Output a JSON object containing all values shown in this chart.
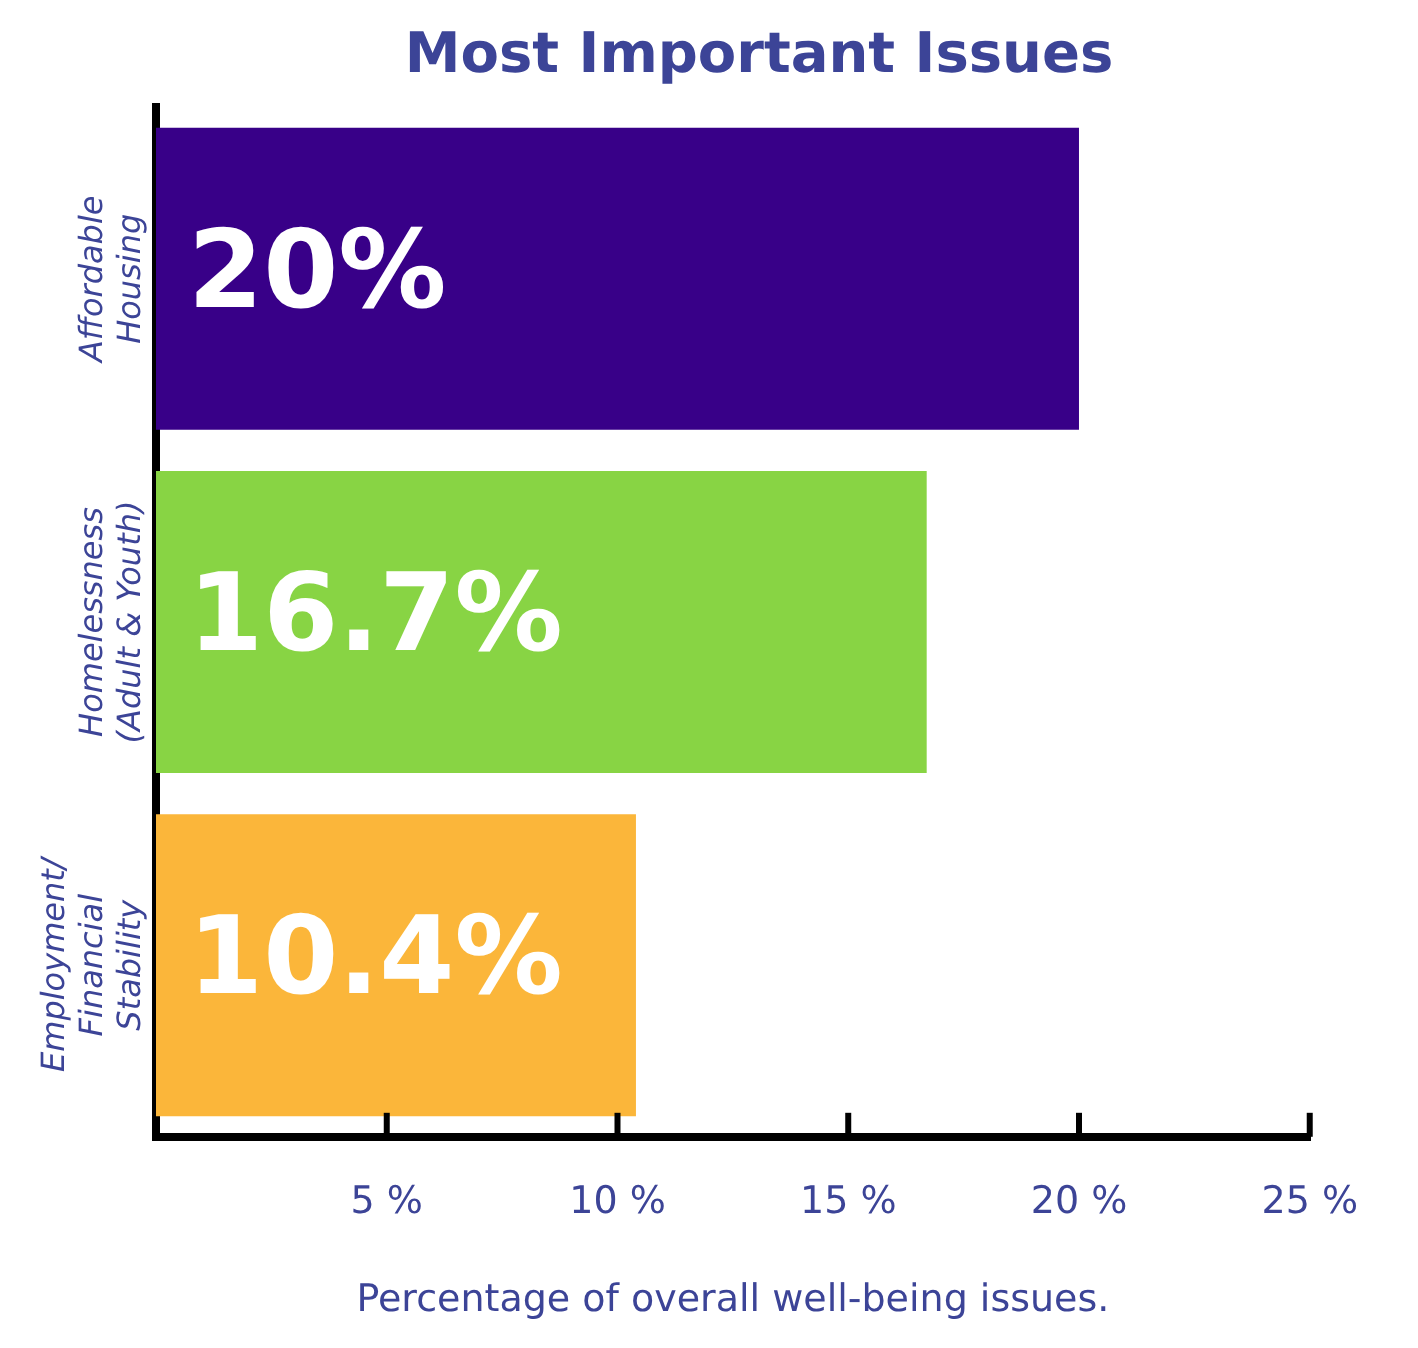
{
  "chart_data": {
    "type": "bar",
    "orientation": "horizontal",
    "title": "Most Important Issues",
    "xlabel": "Percentage of overall well-being issues.",
    "categories": [
      "Affordable\nHousing",
      "Homelessness\n(Adult & Youth)",
      "Employment/\nFinancial\nStability"
    ],
    "values": [
      20,
      16.7,
      10.4
    ],
    "colors": [
      "#380088",
      "#88d444",
      "#fbb63a"
    ],
    "value_labels": [
      "20%",
      "16.7%",
      "10.4%"
    ],
    "xlim": [
      0,
      25
    ],
    "xticks": [
      {
        "value": 5,
        "label": "5 %"
      },
      {
        "value": 10,
        "label": "10 %"
      },
      {
        "value": 15,
        "label": "15 %"
      },
      {
        "value": 20,
        "label": "20 %"
      },
      {
        "value": 25,
        "label": "25 %"
      }
    ],
    "grid": false,
    "legend": false
  }
}
